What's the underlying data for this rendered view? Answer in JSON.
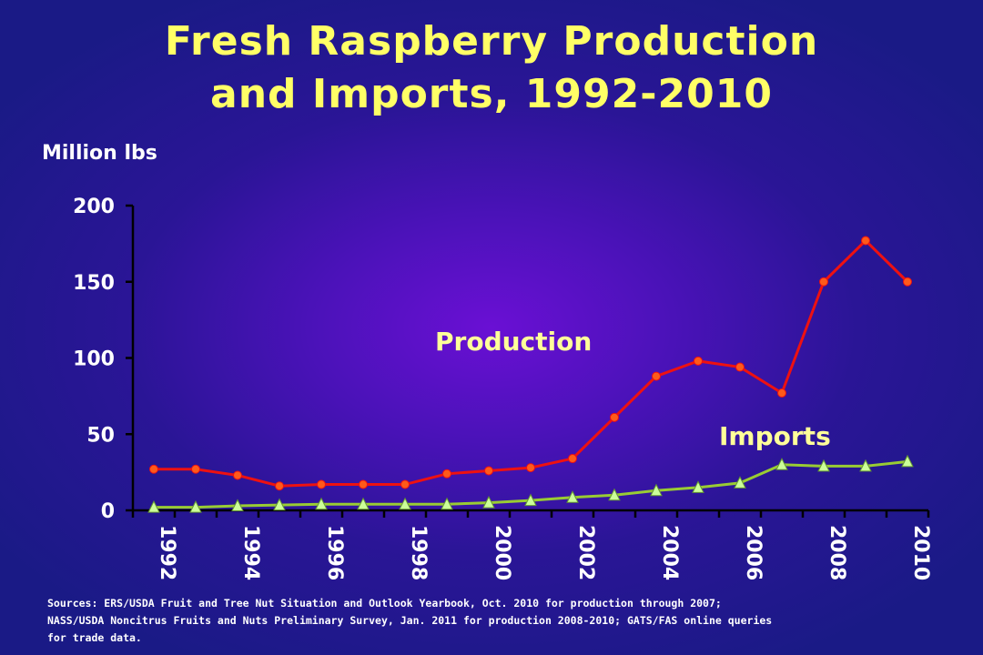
{
  "chart_data": {
    "type": "line",
    "title": "Fresh Raspberry Production",
    "title_line2": "and Imports, 1992-2010",
    "ylabel": "Million lbs",
    "xlabel": "",
    "ylim": [
      0,
      200
    ],
    "yticks": [
      0,
      50,
      100,
      150,
      200
    ],
    "x": [
      1992,
      1993,
      1994,
      1995,
      1996,
      1997,
      1998,
      1999,
      2000,
      2001,
      2002,
      2003,
      2004,
      2005,
      2006,
      2007,
      2008,
      2009,
      2010
    ],
    "xtick_labels": [
      "1992",
      "1994",
      "1996",
      "1998",
      "2000",
      "2002",
      "2004",
      "2006",
      "2008",
      "2010"
    ],
    "grid": false,
    "series": [
      {
        "name": "Production",
        "color": "#ee1111",
        "marker": "circle",
        "values": [
          27,
          27,
          23,
          16,
          17,
          17,
          17,
          24,
          26,
          28,
          34,
          61,
          88,
          98,
          94,
          77,
          150,
          177,
          150
        ]
      },
      {
        "name": "Imports",
        "color": "#99cc33",
        "marker": "triangle",
        "values": [
          2,
          2,
          3,
          3.5,
          4,
          4,
          4,
          4,
          5,
          6.5,
          8.5,
          10,
          13,
          15,
          18,
          30,
          29,
          29,
          32
        ]
      }
    ],
    "annotations": [
      {
        "text": "Production",
        "series": 0
      },
      {
        "text": "Imports",
        "series": 1
      }
    ]
  },
  "sources": {
    "line1": "Sources: ERS/USDA Fruit and Tree Nut Situation and Outlook Yearbook, Oct. 2010 for production through 2007;",
    "line2": "NASS/USDA Noncitrus Fruits and Nuts Preliminary Survey, Jan. 2011 for production 2008-2010; GATS/FAS online queries",
    "line3": "for trade data."
  }
}
